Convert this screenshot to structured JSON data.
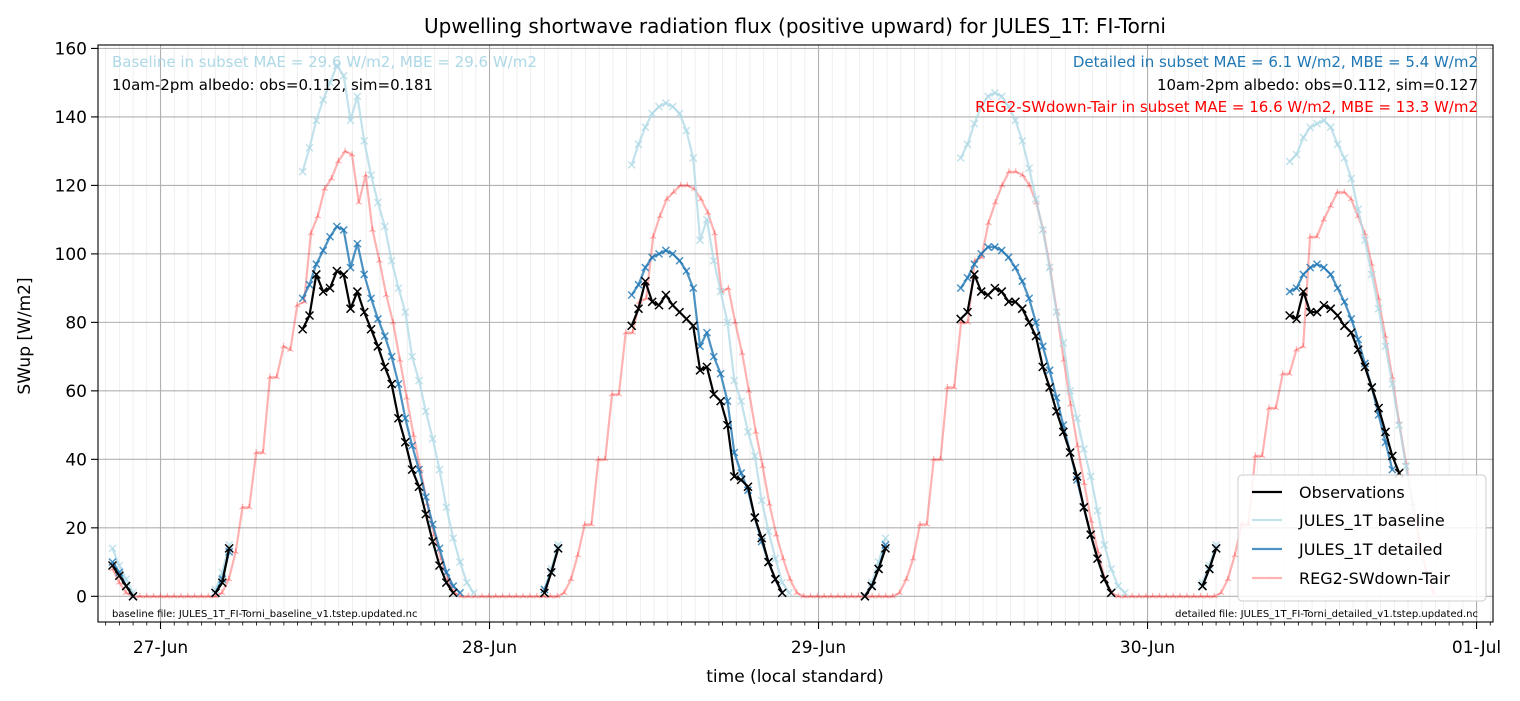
{
  "colors": {
    "observations": "#000000",
    "baseline": "#add8e6",
    "detailed": "#1f77b4",
    "reg2": "#ff0000"
  },
  "chart_data": {
    "type": "line",
    "title": "Upwelling shortwave radiation flux (positive upward) for JULES_1T: FI-Torni",
    "xlabel": "time (local standard)",
    "ylabel": "SWup [W/m2]",
    "xlim": [
      -0.19,
      4.05
    ],
    "ylim": [
      -7.5,
      161
    ],
    "x_unit": "days since 27-Jun 00:00 (local standard)",
    "x_ticks": [
      {
        "pos": 0,
        "label": "27-Jun"
      },
      {
        "pos": 1,
        "label": "28-Jun"
      },
      {
        "pos": 2,
        "label": "29-Jun"
      },
      {
        "pos": 3,
        "label": "30-Jun"
      },
      {
        "pos": 4,
        "label": "01-Jul"
      }
    ],
    "y_ticks": [
      0,
      20,
      40,
      60,
      80,
      100,
      120,
      140,
      160
    ],
    "grid": true,
    "annotations": {
      "baseline_stats": "Baseline in subset MAE = 29.6 W/m2, MBE = 29.6 W/m2",
      "baseline_albedo": "10am-2pm albedo: obs=0.112, sim=0.181",
      "detailed_stats": "Detailed in subset MAE = 6.1 W/m2, MBE = 5.4 W/m2",
      "detailed_albedo": "10am-2pm albedo: obs=0.112, sim=0.127",
      "reg2_stats": "REG2-SWdown-Tair in subset MAE = 16.6 W/m2, MBE = 13.3 W/m2",
      "baseline_file": "baseline file: JULES_1T_FI-Torni_baseline_v1.tstep.updated.nc",
      "detailed_file": "detailed file: JULES_1T_FI-Torni_detailed_v1.tstep.updated.nc"
    },
    "legend_position": "lower right",
    "series": [
      {
        "name": "Observations",
        "color": "#000000",
        "marker": "x",
        "segments": [
          {
            "x0": -0.146,
            "dx": 0.0208,
            "y": [
              9,
              6,
              3,
              0
            ]
          },
          {
            "x0": 0.167,
            "dx": 0.0208,
            "y": [
              1,
              4,
              14
            ]
          },
          {
            "x0": 0.432,
            "dx": 0.0208,
            "y": [
              78,
              82,
              94,
              89,
              90,
              95,
              94,
              84,
              89,
              83,
              78,
              73,
              67,
              62,
              52,
              45,
              37,
              32,
              24,
              16,
              9,
              4,
              1
            ]
          },
          {
            "x0": 1.167,
            "dx": 0.0208,
            "y": [
              1,
              7,
              14
            ]
          },
          {
            "x0": 1.432,
            "dx": 0.0208,
            "y": [
              79,
              84,
              92,
              86,
              85,
              88,
              85,
              83,
              81,
              79,
              66,
              67,
              59,
              57,
              50,
              35,
              34,
              32,
              23,
              17,
              10,
              5,
              1
            ]
          },
          {
            "x0": 2.141,
            "dx": 0.0208,
            "y": [
              0,
              3,
              8,
              14
            ]
          },
          {
            "x0": 2.432,
            "dx": 0.0208,
            "y": [
              81,
              83,
              94,
              89,
              88,
              90,
              89,
              86,
              86,
              84,
              80,
              76,
              67,
              61,
              54,
              48,
              42,
              35,
              26,
              18,
              11,
              5,
              1
            ]
          },
          {
            "x0": 3.167,
            "dx": 0.0208,
            "y": [
              3,
              8,
              14
            ]
          },
          {
            "x0": 3.432,
            "dx": 0.0208,
            "y": [
              82,
              81,
              89,
              83,
              83,
              85,
              84,
              82,
              79,
              77,
              72,
              67,
              61,
              55,
              48,
              41,
              36
            ]
          }
        ]
      },
      {
        "name": "JULES_1T baseline",
        "color": "#add8e6",
        "marker": "x",
        "segments": [
          {
            "x0": -0.146,
            "dx": 0.0208,
            "y": [
              14,
              9,
              5,
              1
            ]
          },
          {
            "x0": 0.167,
            "dx": 0.0208,
            "y": [
              2,
              7,
              15
            ]
          },
          {
            "x0": 0.432,
            "dx": 0.0208,
            "y": [
              124,
              131,
              139,
              145,
              150,
              155,
              152,
              139,
              146,
              133,
              123,
              115,
              108,
              98,
              90,
              83,
              70,
              63,
              54,
              46,
              37,
              26,
              17,
              10,
              4,
              1
            ]
          },
          {
            "x0": 1.167,
            "dx": 0.0208,
            "y": [
              2,
              8,
              15
            ]
          },
          {
            "x0": 1.432,
            "dx": 0.0208,
            "y": [
              126,
              132,
              137,
              141,
              143,
              144,
              143,
              141,
              136,
              128,
              104,
              110,
              98,
              89,
              80,
              63,
              57,
              48,
              41,
              28,
              19,
              11,
              4,
              1
            ]
          },
          {
            "x0": 2.141,
            "dx": 0.0208,
            "y": [
              0,
              4,
              10,
              17
            ]
          },
          {
            "x0": 2.432,
            "dx": 0.0208,
            "y": [
              128,
              132,
              138,
              143,
              146,
              147,
              146,
              143,
              139,
              133,
              125,
              116,
              107,
              96,
              83,
              74,
              60,
              52,
              43,
              35,
              25,
              15,
              8,
              3,
              1
            ]
          },
          {
            "x0": 3.167,
            "dx": 0.0208,
            "y": [
              4,
              9,
              15
            ]
          },
          {
            "x0": 3.432,
            "dx": 0.0208,
            "y": [
              127,
              129,
              134,
              137,
              138,
              139,
              137,
              132,
              128,
              122,
              113,
              104,
              94,
              84,
              73,
              62,
              50,
              38,
              26
            ]
          }
        ]
      },
      {
        "name": "JULES_1T detailed",
        "color": "#1f77b4",
        "marker": "x",
        "segments": [
          {
            "x0": -0.146,
            "dx": 0.0208,
            "y": [
              10,
              7,
              3,
              0
            ]
          },
          {
            "x0": 0.167,
            "dx": 0.0208,
            "y": [
              1,
              5,
              13
            ]
          },
          {
            "x0": 0.432,
            "dx": 0.0208,
            "y": [
              87,
              91,
              97,
              101,
              105,
              108,
              107,
              96,
              103,
              94,
              87,
              81,
              76,
              70,
              62,
              52,
              44,
              37,
              29,
              21,
              14,
              7,
              3,
              1
            ]
          },
          {
            "x0": 1.167,
            "dx": 0.0208,
            "y": [
              2,
              7,
              14
            ]
          },
          {
            "x0": 1.432,
            "dx": 0.0208,
            "y": [
              88,
              91,
              96,
              99,
              100,
              101,
              100,
              98,
              95,
              90,
              73,
              77,
              70,
              65,
              57,
              42,
              36,
              31,
              23,
              16,
              10,
              5,
              1
            ]
          },
          {
            "x0": 2.141,
            "dx": 0.0208,
            "y": [
              0,
              3,
              8,
              15
            ]
          },
          {
            "x0": 2.432,
            "dx": 0.0208,
            "y": [
              90,
              93,
              97,
              100,
              102,
              102,
              101,
              99,
              96,
              92,
              87,
              80,
              73,
              66,
              58,
              50,
              42,
              34,
              26,
              18,
              11,
              5,
              1
            ]
          },
          {
            "x0": 3.167,
            "dx": 0.0208,
            "y": [
              3,
              8,
              14
            ]
          },
          {
            "x0": 3.432,
            "dx": 0.0208,
            "y": [
              89,
              90,
              94,
              96,
              97,
              96,
              94,
              90,
              86,
              81,
              75,
              68,
              61,
              53,
              45,
              37
            ]
          }
        ]
      },
      {
        "name": "REG2-SWdown-Tair",
        "color": "#ff0000",
        "marker": "tri",
        "alpha": 0.3,
        "segments": [
          {
            "x0": -0.146,
            "dx": 0.0208,
            "y": [
              8,
              4,
              1,
              0,
              0,
              0,
              0,
              0,
              0,
              0,
              0,
              0,
              0,
              0,
              0,
              0,
              1,
              5,
              13,
              26,
              26,
              42,
              42,
              64,
              64,
              73,
              72,
              85,
              86,
              106,
              111,
              119,
              122,
              127,
              130,
              129,
              115,
              123,
              107,
              98,
              88,
              80,
              69,
              58,
              47,
              37,
              27,
              18,
              11,
              5,
              1,
              0,
              0,
              0,
              0,
              0,
              0,
              0,
              0,
              0,
              0,
              0,
              0,
              0,
              0,
              0,
              1,
              5,
              12,
              21,
              21,
              40,
              40,
              59,
              59,
              77,
              77,
              86,
              87,
              105,
              111,
              116,
              118,
              120,
              120,
              119,
              116,
              112,
              106,
              89,
              90,
              80,
              71,
              60,
              48,
              38,
              27,
              18,
              11,
              5,
              1,
              0,
              0,
              0,
              0,
              0,
              0,
              0,
              0,
              0,
              0,
              0,
              0,
              0,
              0,
              1,
              5,
              11,
              21,
              21,
              40,
              40,
              61,
              61,
              80,
              80,
              98,
              99,
              109,
              115,
              120,
              124,
              124,
              123,
              120,
              115,
              107,
              96,
              83,
              69,
              56,
              44,
              33,
              22,
              13,
              5,
              1,
              0,
              0,
              0,
              0,
              0,
              0,
              0,
              0,
              0,
              0,
              0,
              0,
              0,
              0,
              0,
              1,
              5,
              12,
              21,
              21,
              41,
              41,
              55,
              55,
              65,
              65,
              72,
              73,
              105,
              105,
              110,
              114,
              118,
              118,
              116,
              111,
              106,
              97,
              87,
              76,
              64,
              51,
              39,
              27,
              16,
              7,
              1
            ]
          }
        ]
      }
    ]
  }
}
